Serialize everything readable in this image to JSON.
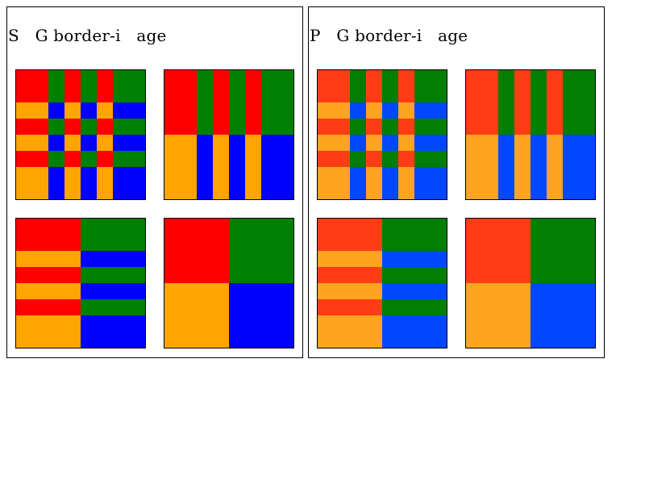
{
  "panels": [
    {
      "id": "svg",
      "title": "S   G border-i   age",
      "colors": {
        "red": "#ff0000",
        "green": "#008000",
        "orange": "#ffa500",
        "blue": "#0000ff"
      },
      "tiles": [
        {
          "id": "tile-1",
          "pattern": "repeat-both"
        },
        {
          "id": "tile-2",
          "pattern": "repeat-x"
        },
        {
          "id": "tile-3",
          "pattern": "repeat-y"
        },
        {
          "id": "tile-4",
          "pattern": "stretch"
        }
      ]
    },
    {
      "id": "png",
      "title": "P   G border-i   age",
      "colors": {
        "red": "#ff3c14",
        "green": "#007f00",
        "orange": "#ffa41e",
        "blue": "#0048ff"
      },
      "tiles": [
        {
          "id": "tile-1",
          "pattern": "repeat-both"
        },
        {
          "id": "tile-2",
          "pattern": "repeat-x"
        },
        {
          "id": "tile-3",
          "pattern": "repeat-y"
        },
        {
          "id": "tile-4",
          "pattern": "stretch"
        }
      ]
    }
  ]
}
